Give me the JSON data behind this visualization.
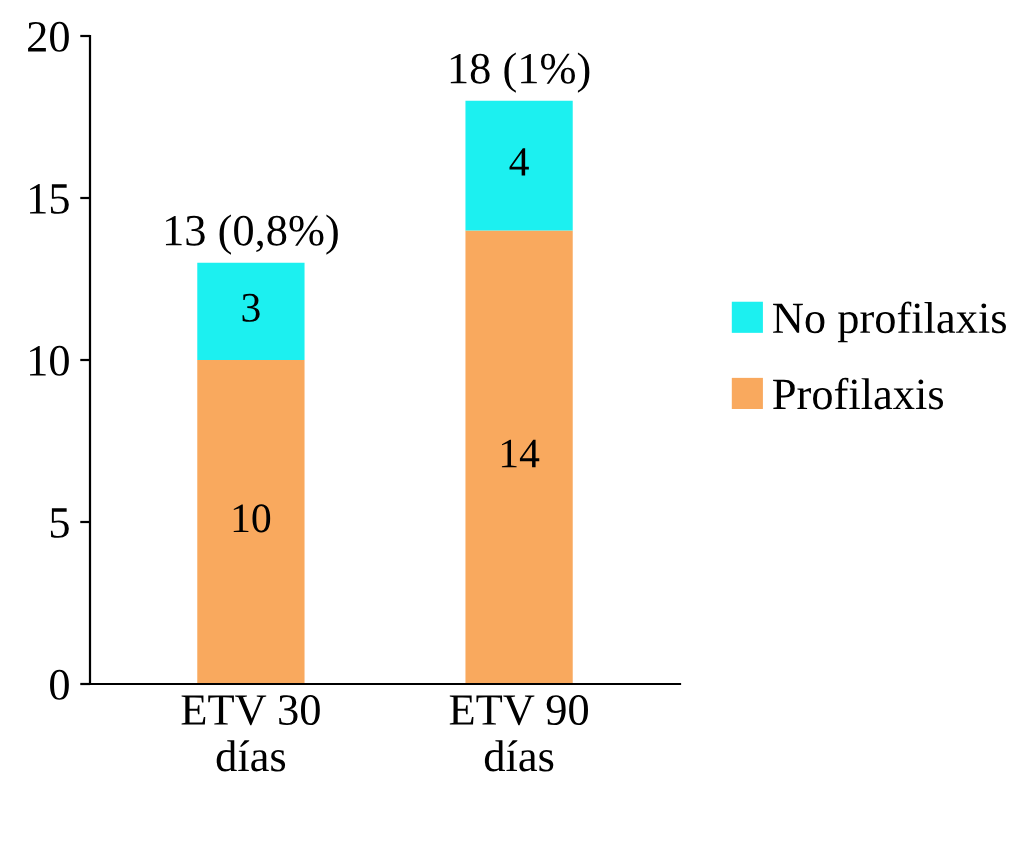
{
  "chart_data": {
    "type": "bar",
    "stacked": true,
    "categories": [
      "ETV 30\ndías",
      "ETV 90\ndías"
    ],
    "series": [
      {
        "name": "Profilaxis",
        "color": "#f9a95e",
        "values": [
          10,
          14
        ]
      },
      {
        "name": "No profilaxis",
        "color": "#1cf0f0",
        "values": [
          3,
          4
        ]
      }
    ],
    "totals": [
      "13 (0,8%)",
      "18 (1%)"
    ],
    "data_labels": true,
    "ylim": [
      0,
      20
    ],
    "yticks": [
      0,
      5,
      10,
      15,
      20
    ],
    "grid": false,
    "legend": "right"
  }
}
